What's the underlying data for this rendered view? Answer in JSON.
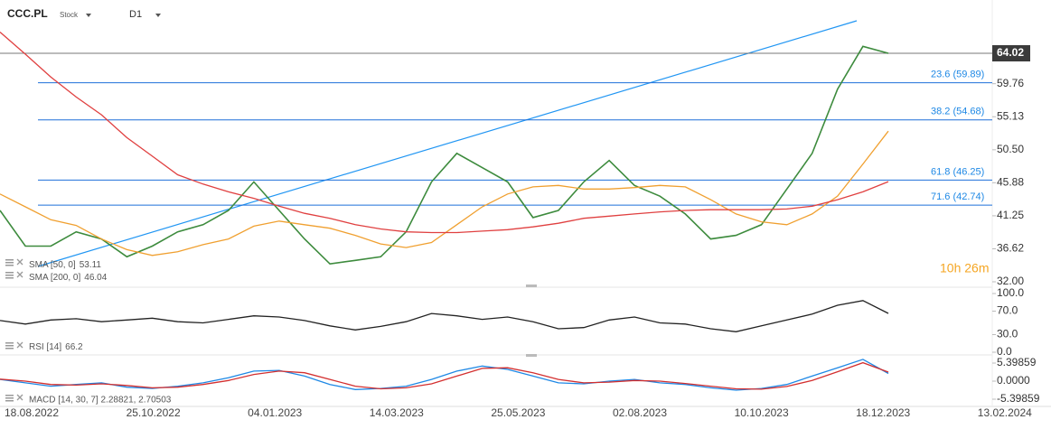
{
  "chart_data": [
    {
      "type": "line",
      "title": "CCC.PL",
      "subtitle": "Stock",
      "timeframe": "D1",
      "ylim": [
        31.62,
        71.49
      ],
      "yticks": [
        {
          "value": 32,
          "label": "32.00"
        },
        36.62,
        41.25,
        45.88,
        {
          "value": 50.5,
          "label": "50.50"
        },
        55.13,
        59.76
      ],
      "color": "#3d8b3d",
      "values": [
        42,
        37,
        37,
        39,
        38,
        35.5,
        37,
        39,
        40,
        42,
        46,
        42,
        38,
        34.5,
        35,
        35.5,
        39,
        46,
        50,
        48,
        46,
        41,
        42,
        46,
        49,
        45.5,
        44,
        41.5,
        38,
        38.5,
        40,
        45,
        50,
        59,
        65,
        64.02
      ],
      "series": [
        {
          "name": "SMA [50, 0]",
          "color": "#f0a030",
          "values": [
            44.3,
            42.5,
            40.7,
            39.9,
            38,
            36.5,
            35.7,
            36.2,
            37.2,
            38,
            39.8,
            40.5,
            40,
            39.5,
            38.5,
            37.3,
            36.8,
            37.5,
            40,
            42.5,
            44.3,
            45.3,
            45.5,
            45,
            45,
            45.2,
            45.5,
            45.3,
            43.5,
            41.5,
            40.4,
            40,
            41.5,
            44,
            48.5,
            53.11
          ]
        },
        {
          "name": "SMA [200, 0]",
          "color": "#e04040",
          "values": [
            67,
            63.9,
            60.7,
            57.9,
            55.4,
            52.2,
            49.6,
            47,
            45.7,
            44.6,
            43.7,
            42.6,
            41.6,
            40.9,
            40,
            39.4,
            39,
            38.9,
            38.9,
            39.1,
            39.3,
            39.7,
            40.2,
            40.9,
            41.2,
            41.5,
            41.8,
            42,
            42.1,
            42.1,
            42.1,
            42.2,
            42.6,
            43.5,
            44.6,
            46.04
          ]
        }
      ],
      "levels": [
        {
          "value": 59.89,
          "label": "23.6 (59.89)"
        },
        {
          "value": 54.68,
          "label": "38.2 (54.68)"
        },
        {
          "value": 46.25,
          "label": "61.8 (46.25)"
        },
        {
          "value": 42.74,
          "label": "71.6 (42.74)"
        }
      ],
      "countdown": "10h 26m"
    },
    {
      "type": "line",
      "ylim": [
        0,
        100
      ],
      "yticks": [
        {
          "value": 100,
          "label": "100.0"
        },
        {
          "value": 70,
          "label": "70.0"
        },
        {
          "value": 30,
          "label": "30.0"
        },
        {
          "value": 0,
          "label": "0.0"
        }
      ],
      "series": [
        {
          "name": "RSI [14]",
          "color": "#222222",
          "values": [
            54,
            48,
            55,
            57,
            52,
            55,
            58,
            52,
            50,
            56,
            62,
            60,
            54,
            45,
            38,
            44,
            52,
            66,
            62,
            56,
            60,
            52,
            40,
            42,
            55,
            60,
            50,
            48,
            40,
            35,
            45,
            55,
            65,
            80,
            88,
            66.2
          ]
        }
      ]
    },
    {
      "type": "line",
      "ylim": [
        -7.56,
        7.29
      ],
      "yticks": [
        5.39859,
        {
          "value": 0,
          "label": "0.0000"
        },
        -5.39859
      ],
      "legend": "MACD [14, 30, 7] 2.28821, 2.70503",
      "series": [
        {
          "color": "#1e88e5",
          "values": [
            0.5,
            -0.5,
            -1.5,
            -1,
            -0.5,
            -1.8,
            -2.2,
            -1.5,
            -0.5,
            1,
            3,
            3.2,
            1.5,
            -1,
            -2.5,
            -2.2,
            -1.5,
            0.5,
            3,
            4.5,
            3.5,
            1.5,
            -0.5,
            -0.8,
            0,
            0.5,
            -0.5,
            -1,
            -2,
            -2.7,
            -2.2,
            -1,
            1.5,
            4,
            6.5,
            2.28821
          ]
        },
        {
          "color": "#d32f2f",
          "values": [
            0.6,
            0,
            -1,
            -1.2,
            -0.8,
            -1.3,
            -2,
            -1.8,
            -1,
            0.2,
            2,
            3,
            2.5,
            0.5,
            -1.5,
            -2.3,
            -2,
            -0.8,
            1.5,
            3.8,
            4,
            2.5,
            0.5,
            -0.5,
            -0.3,
            0.2,
            0,
            -0.7,
            -1.5,
            -2.3,
            -2.4,
            -1.6,
            0.2,
            2.8,
            5.5,
            2.70503
          ]
        }
      ],
      "xticks": [
        "18.08.2022",
        "25.10.2022",
        "04.01.2023",
        "14.03.2023",
        "25.05.2023",
        "02.08.2023",
        "10.10.2023",
        "18.12.2023",
        "13.02.2024"
      ]
    }
  ]
}
